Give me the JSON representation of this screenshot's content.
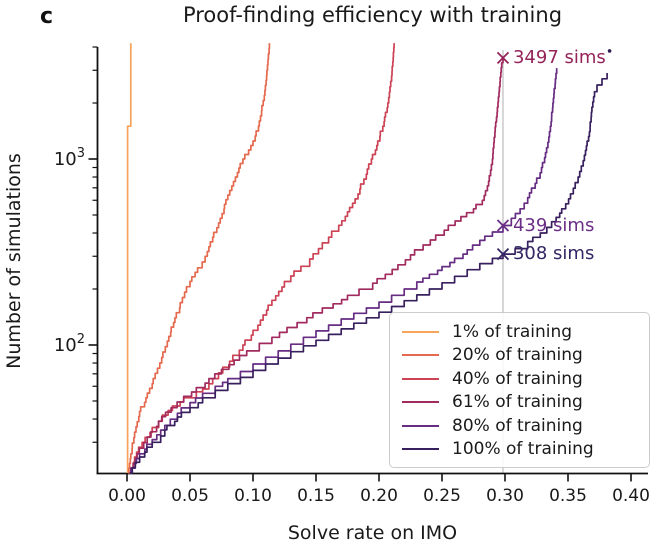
{
  "panel_label": "c",
  "title": "Proof-finding efficiency with training",
  "chart_data": {
    "type": "line",
    "subtype": "step-cdf",
    "title": "Proof-finding efficiency with training",
    "xlabel": "Solve rate on IMO",
    "ylabel": "Number of simulations",
    "x_ticks": [
      0.0,
      0.05,
      0.1,
      0.15,
      0.2,
      0.25,
      0.3,
      0.35,
      0.4
    ],
    "x_tick_labels": [
      "0.00",
      "0.05",
      "0.10",
      "0.15",
      "0.20",
      "0.25",
      "0.30",
      "0.35",
      "0.40"
    ],
    "y_scale": "log",
    "y_major_ticks": [
      {
        "value": 100,
        "base": "10",
        "exp": "2"
      },
      {
        "value": 1000,
        "base": "10",
        "exp": "3"
      }
    ],
    "y_minor_ticks": [
      30,
      40,
      50,
      60,
      70,
      80,
      90,
      200,
      300,
      400,
      500,
      600,
      700,
      800,
      900,
      2000,
      3000,
      4000
    ],
    "xlim": [
      -0.023,
      0.413
    ],
    "ylim": [
      20.5,
      4300
    ],
    "grid": false,
    "legend_position": "lower right",
    "reference_line": {
      "x": 0.2984,
      "color": "#bdbdbd"
    },
    "series": [
      {
        "name": "1% of training",
        "color": "#f7a35c",
        "points": [
          [
            0.0005,
            20.5
          ],
          [
            0.0005,
            1500
          ],
          [
            0.003,
            1500
          ],
          [
            0.003,
            4200
          ]
        ]
      },
      {
        "name": "20% of training",
        "color": "#e5694e",
        "points": [
          [
            0.001,
            20.5
          ],
          [
            0.003,
            26
          ],
          [
            0.006,
            34
          ],
          [
            0.01,
            44
          ],
          [
            0.015,
            52
          ],
          [
            0.02,
            62
          ],
          [
            0.026,
            80
          ],
          [
            0.032,
            105
          ],
          [
            0.038,
            140
          ],
          [
            0.044,
            180
          ],
          [
            0.05,
            220
          ],
          [
            0.056,
            260
          ],
          [
            0.062,
            300
          ],
          [
            0.068,
            380
          ],
          [
            0.074,
            480
          ],
          [
            0.08,
            640
          ],
          [
            0.086,
            800
          ],
          [
            0.092,
            1000
          ],
          [
            0.1,
            1250
          ],
          [
            0.105,
            1600
          ],
          [
            0.109,
            2200
          ],
          [
            0.111,
            3000
          ],
          [
            0.113,
            4200
          ]
        ]
      },
      {
        "name": "40% of training",
        "color": "#cd4355",
        "points": [
          [
            0.002,
            20.5
          ],
          [
            0.006,
            25
          ],
          [
            0.012,
            30
          ],
          [
            0.02,
            36
          ],
          [
            0.028,
            42
          ],
          [
            0.036,
            47
          ],
          [
            0.045,
            52
          ],
          [
            0.055,
            56
          ],
          [
            0.06,
            58
          ],
          [
            0.068,
            66
          ],
          [
            0.076,
            76
          ],
          [
            0.084,
            88
          ],
          [
            0.092,
            100
          ],
          [
            0.1,
            120
          ],
          [
            0.108,
            145
          ],
          [
            0.115,
            174
          ],
          [
            0.123,
            205
          ],
          [
            0.13,
            235
          ],
          [
            0.138,
            265
          ],
          [
            0.145,
            290
          ],
          [
            0.152,
            330
          ],
          [
            0.16,
            380
          ],
          [
            0.168,
            440
          ],
          [
            0.175,
            520
          ],
          [
            0.181,
            610
          ],
          [
            0.188,
            780
          ],
          [
            0.194,
            1000
          ],
          [
            0.199,
            1250
          ],
          [
            0.203,
            1500
          ],
          [
            0.207,
            2000
          ],
          [
            0.21,
            2800
          ],
          [
            0.212,
            4200
          ]
        ]
      },
      {
        "name": "61% of training",
        "color": "#a12a5e",
        "points": [
          [
            0.002,
            20.5
          ],
          [
            0.008,
            26
          ],
          [
            0.016,
            32
          ],
          [
            0.025,
            39
          ],
          [
            0.035,
            46
          ],
          [
            0.045,
            53
          ],
          [
            0.055,
            59
          ],
          [
            0.065,
            66
          ],
          [
            0.075,
            74
          ],
          [
            0.085,
            83
          ],
          [
            0.095,
            93
          ],
          [
            0.105,
            102
          ],
          [
            0.115,
            110
          ],
          [
            0.135,
            132
          ],
          [
            0.155,
            158
          ],
          [
            0.175,
            185
          ],
          [
            0.195,
            215
          ],
          [
            0.205,
            240
          ],
          [
            0.215,
            270
          ],
          [
            0.225,
            305
          ],
          [
            0.235,
            345
          ],
          [
            0.245,
            390
          ],
          [
            0.255,
            440
          ],
          [
            0.265,
            490
          ],
          [
            0.275,
            540
          ],
          [
            0.282,
            600
          ],
          [
            0.287,
            760
          ],
          [
            0.29,
            1000
          ],
          [
            0.292,
            1400
          ],
          [
            0.294,
            1900
          ],
          [
            0.296,
            2600
          ],
          [
            0.297,
            3100
          ],
          [
            0.2984,
            3497
          ]
        ]
      },
      {
        "name": "80% of training",
        "color": "#662d83",
        "points": [
          [
            0.002,
            20.5
          ],
          [
            0.01,
            26
          ],
          [
            0.02,
            31
          ],
          [
            0.03,
            37
          ],
          [
            0.04,
            43
          ],
          [
            0.05,
            49
          ],
          [
            0.06,
            55
          ],
          [
            0.07,
            60
          ],
          [
            0.08,
            66
          ],
          [
            0.09,
            72
          ],
          [
            0.1,
            79
          ],
          [
            0.11,
            86
          ],
          [
            0.12,
            93
          ],
          [
            0.13,
            101
          ],
          [
            0.14,
            110
          ],
          [
            0.15,
            119
          ],
          [
            0.16,
            128
          ],
          [
            0.17,
            138
          ],
          [
            0.18,
            148
          ],
          [
            0.19,
            158
          ],
          [
            0.2,
            170
          ],
          [
            0.21,
            185
          ],
          [
            0.22,
            200
          ],
          [
            0.23,
            218
          ],
          [
            0.24,
            240
          ],
          [
            0.25,
            264
          ],
          [
            0.26,
            292
          ],
          [
            0.27,
            325
          ],
          [
            0.28,
            365
          ],
          [
            0.29,
            405
          ],
          [
            0.2984,
            439
          ],
          [
            0.305,
            480
          ],
          [
            0.312,
            540
          ],
          [
            0.318,
            620
          ],
          [
            0.324,
            740
          ],
          [
            0.329,
            900
          ],
          [
            0.333,
            1150
          ],
          [
            0.336,
            1500
          ],
          [
            0.338,
            2000
          ],
          [
            0.34,
            2700
          ],
          [
            0.341,
            3080
          ]
        ]
      },
      {
        "name": "100% of training",
        "color": "#38205f",
        "points": [
          [
            0.002,
            20.5
          ],
          [
            0.01,
            25
          ],
          [
            0.02,
            30
          ],
          [
            0.03,
            35
          ],
          [
            0.04,
            41
          ],
          [
            0.05,
            46
          ],
          [
            0.06,
            52
          ],
          [
            0.07,
            57
          ],
          [
            0.08,
            62
          ],
          [
            0.09,
            67
          ],
          [
            0.1,
            73
          ],
          [
            0.11,
            79
          ],
          [
            0.12,
            85
          ],
          [
            0.13,
            92
          ],
          [
            0.14,
            99
          ],
          [
            0.15,
            106
          ],
          [
            0.16,
            114
          ],
          [
            0.17,
            122
          ],
          [
            0.18,
            131
          ],
          [
            0.19,
            140
          ],
          [
            0.2,
            150
          ],
          [
            0.21,
            161
          ],
          [
            0.22,
            173
          ],
          [
            0.23,
            186
          ],
          [
            0.24,
            200
          ],
          [
            0.25,
            216
          ],
          [
            0.26,
            234
          ],
          [
            0.27,
            254
          ],
          [
            0.28,
            274
          ],
          [
            0.29,
            292
          ],
          [
            0.2984,
            308
          ],
          [
            0.308,
            330
          ],
          [
            0.318,
            360
          ],
          [
            0.328,
            400
          ],
          [
            0.337,
            460
          ],
          [
            0.345,
            540
          ],
          [
            0.352,
            650
          ],
          [
            0.358,
            800
          ],
          [
            0.363,
            1050
          ],
          [
            0.367,
            1400
          ],
          [
            0.369,
            1900
          ],
          [
            0.371,
            2300
          ],
          [
            0.373,
            2500
          ],
          [
            0.377,
            2700
          ],
          [
            0.381,
            2900
          ]
        ]
      }
    ],
    "annotations": [
      {
        "text": "3497 sims",
        "x": 0.2984,
        "sims": 3497,
        "color": "#94235a"
      },
      {
        "text": "439 sims",
        "x": 0.2984,
        "sims": 439,
        "color": "#6b2e86"
      },
      {
        "text": "308 sims",
        "x": 0.2984,
        "sims": 308,
        "color": "#342664"
      }
    ],
    "detached_dot": {
      "x": 0.383,
      "sims": 3810,
      "color": "#2f1c55"
    }
  }
}
